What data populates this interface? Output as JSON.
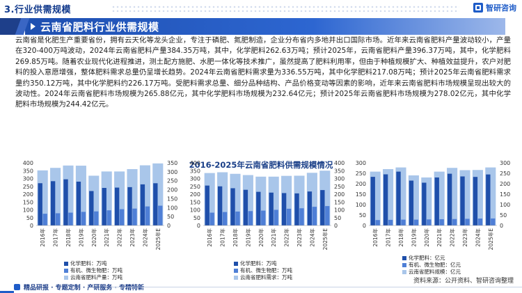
{
  "header": {
    "section_label": "3.行业供需规模",
    "brand_name": "智研咨询"
  },
  "title": "云南省肥料行业供需规模",
  "paragraph": "云南省是化肥生产重要省份，拥有云天化等龙头企业，专注于磷肥、氮肥制造，企业分布省内多地并出口国际市场。近年来云南省肥料产量波动较小，产量在320-400万吨波动，2024年云南省肥料产量384.35万吨，其中，化学肥料262.63万吨；预计2025年，云南省肥料产量396.37万吨，其中，化学肥料269.85万吨。随着农业现代化进程推进，测土配方施肥、水肥一体化等技术推广，虽然提高了肥料利用率，但由于种植规模扩大、种植效益提升，农户对肥料的投入意愿增强，整体肥料需求总量仍呈增长趋势。2024年云南省肥料需求量为336.55万吨，其中化学肥料217.08万吨；预计2025年云南省肥料需求量约350.12万吨，其中化学肥料约226.17万吨。受肥料需求总量、细分品种结构、产品价格变动等因素的影响，近年来云南省肥料市场规模呈现出较大的波动性。2024年云南省肥料市场规模为265.88亿元，其中化学肥料市场规模为232.64亿元；预计2025年云南省肥料市场规模为278.02亿元，其中化学肥料市场规模为244.42亿元。",
  "charts_title": "2016-2025年云南省肥料供需规模情况",
  "colors": {
    "chem": "#1f4faa",
    "organic": "#4f7fd6",
    "total": "#a9c6ea",
    "title_blue": "#1e4fb0"
  },
  "chart_data": [
    {
      "type": "bar",
      "categories": [
        "2016年",
        "2017年",
        "2018年",
        "2019年",
        "2020年",
        "2021年",
        "2022年",
        "2023年",
        "2024年",
        "2025年E"
      ],
      "ylim_left": [
        0,
        400
      ],
      "ylim_right": [
        0,
        350
      ],
      "yticks_left": [
        "400",
        "350",
        "300",
        "250",
        "200",
        "150",
        "100",
        "50",
        "0"
      ],
      "yticks_right": [
        "350",
        "300",
        "250",
        "200",
        "150",
        "100",
        "50",
        "0"
      ],
      "series": [
        {
          "name": "化学肥料：万吨",
          "values": [
            270,
            283,
            295,
            280,
            220,
            240,
            242,
            245,
            262.63,
            269.85
          ],
          "axis": "left",
          "color_key": "chem"
        },
        {
          "name": "有机、微生物肥：万吨",
          "values": [
            75,
            78,
            82,
            87,
            90,
            97,
            104,
            108,
            121.72,
            126.52
          ],
          "axis": "left",
          "color_key": "organic"
        },
        {
          "name": "云南省肥料产量：万吨",
          "values": [
            352,
            368,
            383,
            382,
            318,
            345,
            345,
            360,
            384.35,
            396.37
          ],
          "axis": "left",
          "color_key": "total"
        }
      ]
    },
    {
      "type": "bar",
      "categories": [
        "2016年",
        "2017年",
        "2018年",
        "2019年",
        "2020年",
        "2021年",
        "2022年",
        "2023年",
        "2024年",
        "2025年E"
      ],
      "ylim_left": [
        0,
        400
      ],
      "ylim_right": [
        0,
        400
      ],
      "yticks_left": [
        "400",
        "350",
        "300",
        "250",
        "200",
        "150",
        "100",
        "50",
        "0"
      ],
      "yticks_right": [
        "400",
        "350",
        "300",
        "250",
        "200",
        "150",
        "100",
        "50",
        "0"
      ],
      "series": [
        {
          "name": "化学肥料：万吨",
          "values": [
            255,
            250,
            238,
            228,
            215,
            210,
            207,
            205,
            217.08,
            226.17
          ],
          "axis": "left",
          "color_key": "chem"
        },
        {
          "name": "有机、微生物肥：万吨",
          "values": [
            82,
            86,
            89,
            92,
            95,
            100,
            107,
            110,
            119.47,
            123.95
          ],
          "axis": "left",
          "color_key": "organic"
        },
        {
          "name": "云南省肥料需求：万吨",
          "values": [
            335,
            340,
            330,
            322,
            312,
            312,
            317,
            318,
            336.55,
            350.12
          ],
          "axis": "left",
          "color_key": "total"
        }
      ]
    },
    {
      "type": "bar",
      "categories": [
        "2016年",
        "2017年",
        "2018年",
        "2019年",
        "2020年",
        "2021年",
        "2022年",
        "2023年",
        "2024年",
        "2025年E"
      ],
      "ylim_left": [
        0,
        300
      ],
      "ylim_right": [
        0,
        300
      ],
      "yticks_left": [
        "300",
        "250",
        "200",
        "150",
        "100",
        "50",
        "0"
      ],
      "yticks_right": [
        "300",
        "250",
        "200",
        "150",
        "100",
        "50",
        "0"
      ],
      "series": [
        {
          "name": "化学肥料：亿元",
          "values": [
            233,
            245,
            258,
            215,
            205,
            230,
            248,
            235,
            232.64,
            244.42
          ],
          "axis": "left",
          "color_key": "chem"
        },
        {
          "name": "有机、微生物肥：亿元",
          "values": [
            26,
            27,
            28,
            28,
            29,
            30,
            31,
            32,
            33.24,
            33.6
          ],
          "axis": "left",
          "color_key": "organic"
        },
        {
          "name": "云南省肥料规模：亿元",
          "values": [
            258,
            270,
            278,
            240,
            230,
            258,
            276,
            265,
            265.88,
            278.02
          ],
          "axis": "left",
          "color_key": "total"
        }
      ]
    }
  ],
  "source": "资料来源：公开资料、智研咨询整理",
  "footer_text": "精品研报 · 专题定制 · 产研服务 · 专精特新"
}
